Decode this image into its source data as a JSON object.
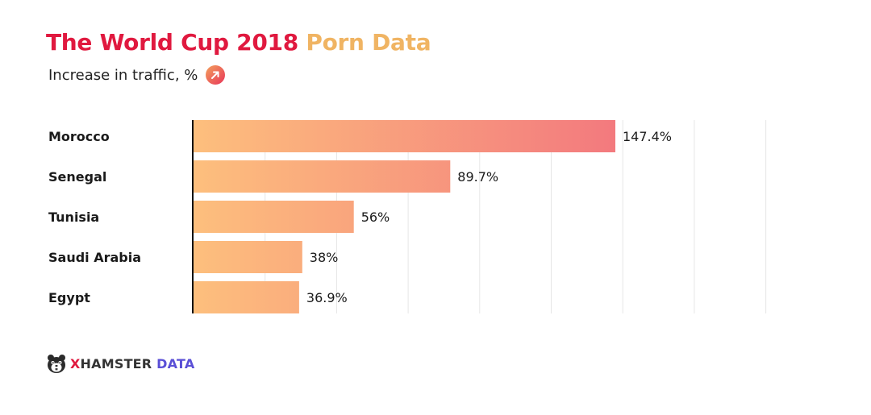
{
  "header": {
    "title_part1": "The World Cup 2018",
    "title_part2": "Porn Data",
    "subtitle": "Increase in traffic, %",
    "subtitle_icon": "arrow-up-right-icon"
  },
  "footer": {
    "logo_x": "X",
    "logo_hamster": "HAMSTER",
    "logo_data": "DATA",
    "logo_icon": "hamster-icon"
  },
  "colors": {
    "title_primary": "#e0193f",
    "title_secondary": "#f0b463",
    "bar_gradient_start": "#fdbf7d",
    "bar_gradient_end": "#ee5a7e",
    "brand_red": "#e0193f",
    "brand_purple": "#5a4fd6"
  },
  "chart_data": {
    "type": "bar",
    "orientation": "horizontal",
    "categories": [
      "Morocco",
      "Senegal",
      "Tunisia",
      "Saudi Arabia",
      "Egypt"
    ],
    "values": [
      147.4,
      89.7,
      56,
      38,
      36.9
    ],
    "value_labels": [
      "147.4%",
      "89.7%",
      "56%",
      "38%",
      "36.9%"
    ],
    "title": "The World Cup 2018 Porn Data",
    "subtitle": "Increase in traffic, %",
    "xlim": [
      0,
      200
    ],
    "grid": true,
    "legend": "none"
  }
}
